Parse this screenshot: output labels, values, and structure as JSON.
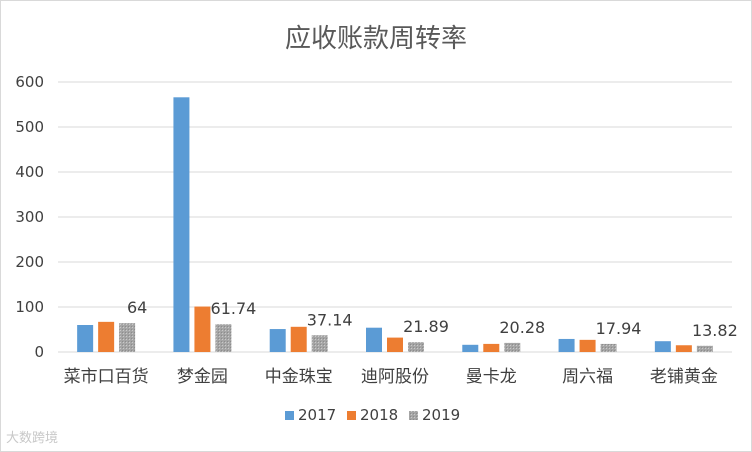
{
  "chart_data": {
    "type": "bar",
    "title": "应收账款周转率",
    "xlabel": "",
    "ylabel": "",
    "ylim": [
      0,
      600
    ],
    "yticks": [
      0,
      100,
      200,
      300,
      400,
      500,
      600
    ],
    "grid": true,
    "legend_position": "bottom",
    "categories": [
      "菜市口百货",
      "梦金园",
      "中金珠宝",
      "迪阿股份",
      "曼卡龙",
      "周六福",
      "老铺黄金"
    ],
    "series": [
      {
        "name": "2017",
        "color": "#5b9bd5",
        "values": [
          60,
          566,
          51,
          54,
          16,
          29,
          24
        ]
      },
      {
        "name": "2018",
        "color": "#ed7d31",
        "values": [
          67,
          101,
          56,
          32,
          18,
          27,
          15
        ]
      },
      {
        "name": "2019",
        "color": "#a5a5a5",
        "values": [
          64,
          61.74,
          37.14,
          21.89,
          20.28,
          17.94,
          13.82
        ]
      }
    ],
    "data_labels": [
      "64",
      "61.74",
      "37.14",
      "21.89",
      "20.28",
      "17.94",
      "13.82"
    ]
  },
  "watermark": "大数跨境"
}
